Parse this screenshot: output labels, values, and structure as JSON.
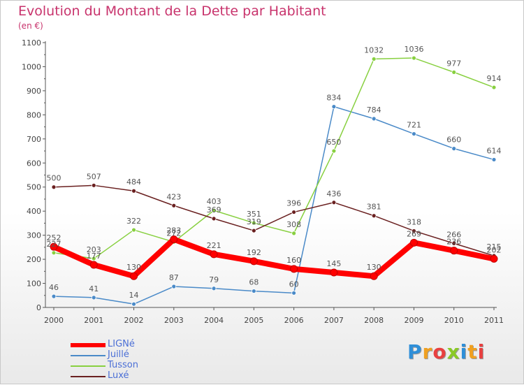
{
  "header": {
    "title": "Evolution du Montant de la Dette par Habitant",
    "subtitle": "(en €)"
  },
  "brand": {
    "letters": [
      "P",
      "r",
      "o",
      "x",
      "i",
      "t",
      "i"
    ],
    "colors": [
      "#2f8fd8",
      "#f0a020",
      "#e84040",
      "#8ac926",
      "#2f8fd8",
      "#f0a020",
      "#e84040"
    ]
  },
  "chart_data": {
    "type": "line",
    "title": "Evolution du Montant de la Dette par Habitant",
    "ylabel": "(en €)",
    "x": [
      "2000",
      "2001",
      "2002",
      "2003",
      "2004",
      "2005",
      "2006",
      "2007",
      "2008",
      "2009",
      "2010",
      "2011"
    ],
    "ylim": [
      0,
      1100
    ],
    "yticks": [
      "0",
      "100",
      "200",
      "300",
      "400",
      "500",
      "600",
      "700",
      "800",
      "900",
      "1000",
      "1100"
    ],
    "grid": false,
    "legend_position": "bottom-left",
    "series": [
      {
        "name": "LIGNé",
        "color": "#ff0000",
        "values": [
          252,
          177,
          130,
          283,
          221,
          192,
          160,
          145,
          130,
          269,
          236,
          202
        ],
        "labels": [
          "252",
          "177",
          "130",
          "283",
          "221",
          "192",
          "160",
          "145",
          "130",
          "269",
          "236",
          "202"
        ]
      },
      {
        "name": "Juillé",
        "color": "#4a8ac8",
        "values": [
          46,
          41,
          14,
          87,
          79,
          68,
          60,
          834,
          784,
          721,
          660,
          614
        ],
        "labels": [
          "46",
          "41",
          "14",
          "87",
          "79",
          "68",
          "60",
          "834",
          "784",
          "721",
          "660",
          "614"
        ]
      },
      {
        "name": "Tusson",
        "color": "#88d040",
        "values": [
          227,
          203,
          322,
          272,
          403,
          351,
          308,
          650,
          1032,
          1036,
          977,
          914
        ],
        "labels": [
          "227",
          "203",
          "322",
          "272",
          "403",
          "351",
          "308",
          "650",
          "1032",
          "1036",
          "977",
          "914"
        ]
      },
      {
        "name": "Luxé",
        "color": "#6a2020",
        "values": [
          500,
          507,
          484,
          423,
          369,
          319,
          396,
          436,
          381,
          318,
          266,
          215
        ],
        "labels": [
          "500",
          "507",
          "484",
          "423",
          "369",
          "319",
          "396",
          "436",
          "381",
          "318",
          "266",
          "215"
        ]
      }
    ]
  }
}
